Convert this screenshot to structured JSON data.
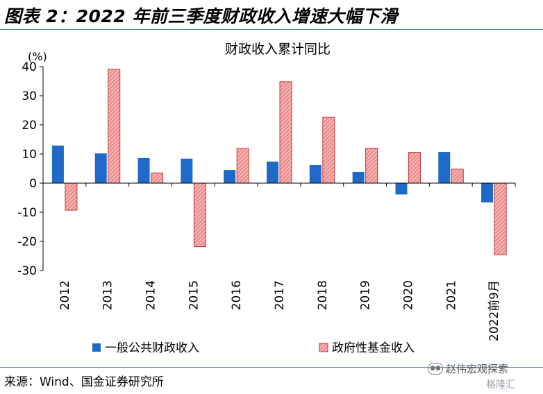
{
  "figure_title": "图表 2：2022 年前三季度财政收入增速大幅下滑",
  "source_note": "来源：Wind、国金证券研究所",
  "watermark": "赵伟宏观探索",
  "watermark2": "格隆汇",
  "colors": {
    "general": "#1f69c8",
    "fund": "#e56464",
    "rule": "#4a7fc1"
  },
  "chart_data": {
    "type": "bar",
    "title": "财政收入累计同比",
    "ylabel": "(%)",
    "xlabel": "",
    "ylim": [
      -30,
      40
    ],
    "yticks": [
      40,
      30,
      20,
      10,
      0,
      -10,
      -20,
      -30
    ],
    "grid": false,
    "legend_position": "bottom",
    "categories": [
      "2012",
      "2013",
      "2014",
      "2015",
      "2016",
      "2017",
      "2018",
      "2019",
      "2020",
      "2021",
      "2022前9月"
    ],
    "series": [
      {
        "name": "一般公共财政收入",
        "values": [
          12.9,
          10.2,
          8.6,
          8.4,
          4.5,
          7.4,
          6.2,
          3.8,
          -3.9,
          10.7,
          -6.6
        ]
      },
      {
        "name": "政府性基金收入",
        "values": [
          -9.3,
          39.1,
          3.5,
          -21.8,
          11.9,
          34.8,
          22.6,
          12.0,
          10.6,
          4.8,
          -24.6
        ]
      }
    ]
  }
}
